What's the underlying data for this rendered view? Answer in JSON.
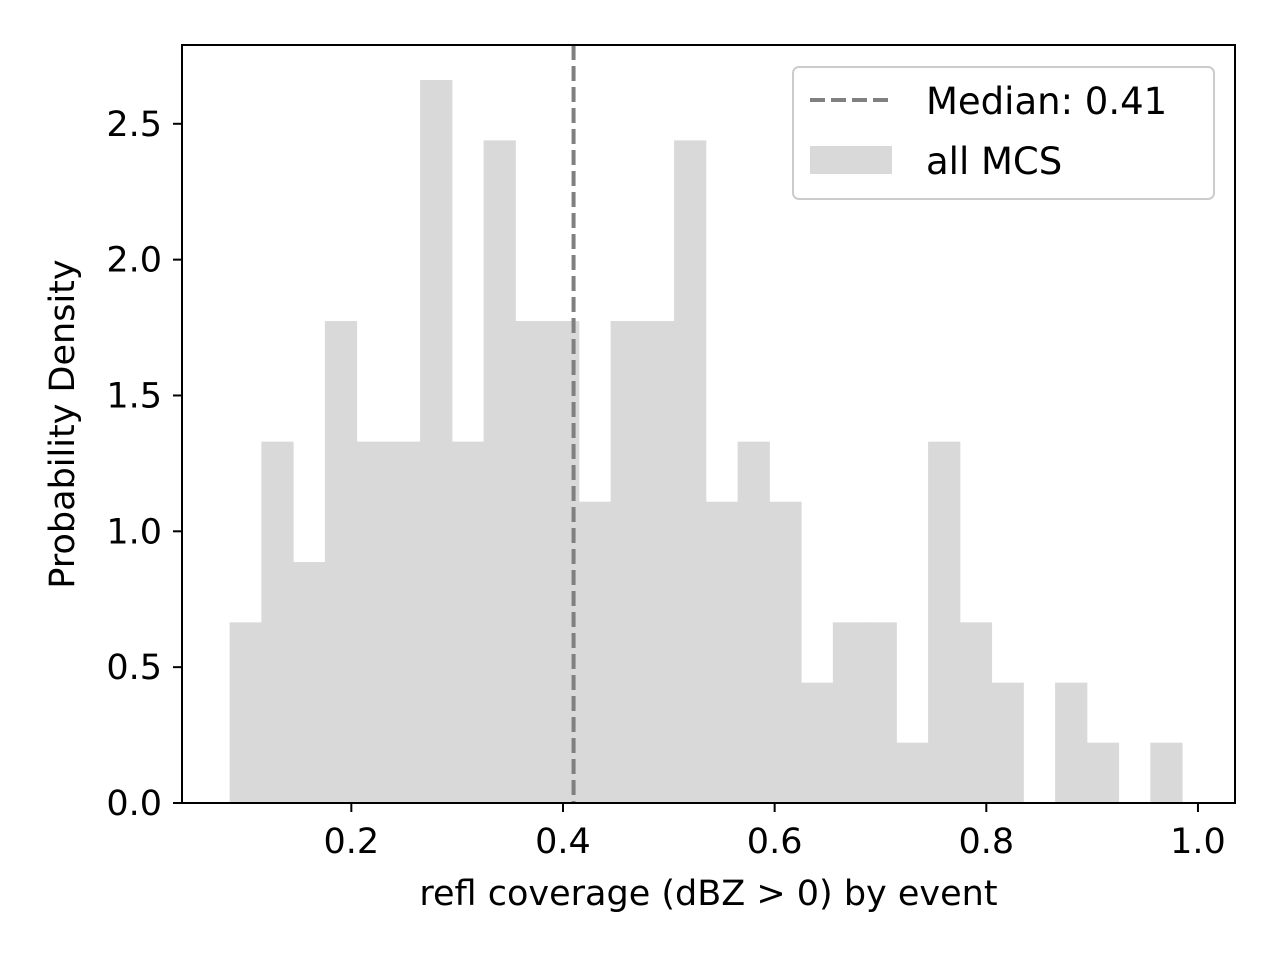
{
  "chart_data": {
    "type": "bar",
    "title": "",
    "xlabel": "refl coverage (dBZ > 0) by event",
    "ylabel": "Probability Density",
    "xlim": [
      0.04,
      1.035
    ],
    "ylim": [
      0,
      2.79
    ],
    "xticks": [
      0.2,
      0.4,
      0.6,
      0.8,
      1.0
    ],
    "xtick_labels": [
      "0.2",
      "0.4",
      "0.6",
      "0.8",
      "1.0"
    ],
    "yticks": [
      0.0,
      0.5,
      1.0,
      1.5,
      2.0,
      2.5
    ],
    "ytick_labels": [
      "0.0",
      "0.5",
      "1.0",
      "1.5",
      "2.0",
      "2.5"
    ],
    "bin_start": 0.085,
    "bin_width": 0.03,
    "values": [
      0.665,
      1.33,
      0.887,
      1.774,
      1.33,
      1.33,
      2.661,
      1.33,
      2.439,
      1.774,
      1.774,
      1.109,
      1.774,
      1.774,
      2.439,
      1.109,
      1.33,
      1.109,
      0.443,
      0.665,
      0.665,
      0.222,
      1.33,
      0.665,
      0.443,
      0.0,
      0.443,
      0.222,
      0.0,
      0.222
    ],
    "bar_color": "#d9d9d9",
    "median": {
      "value": 0.41,
      "color": "#808080",
      "style": "dashed"
    },
    "legend": {
      "position": "top-right",
      "entries": [
        {
          "label": "Median: 0.41",
          "kind": "dashed-line",
          "color": "#808080"
        },
        {
          "label": "all MCS",
          "kind": "patch",
          "color": "#d9d9d9"
        }
      ]
    },
    "grid": false
  }
}
